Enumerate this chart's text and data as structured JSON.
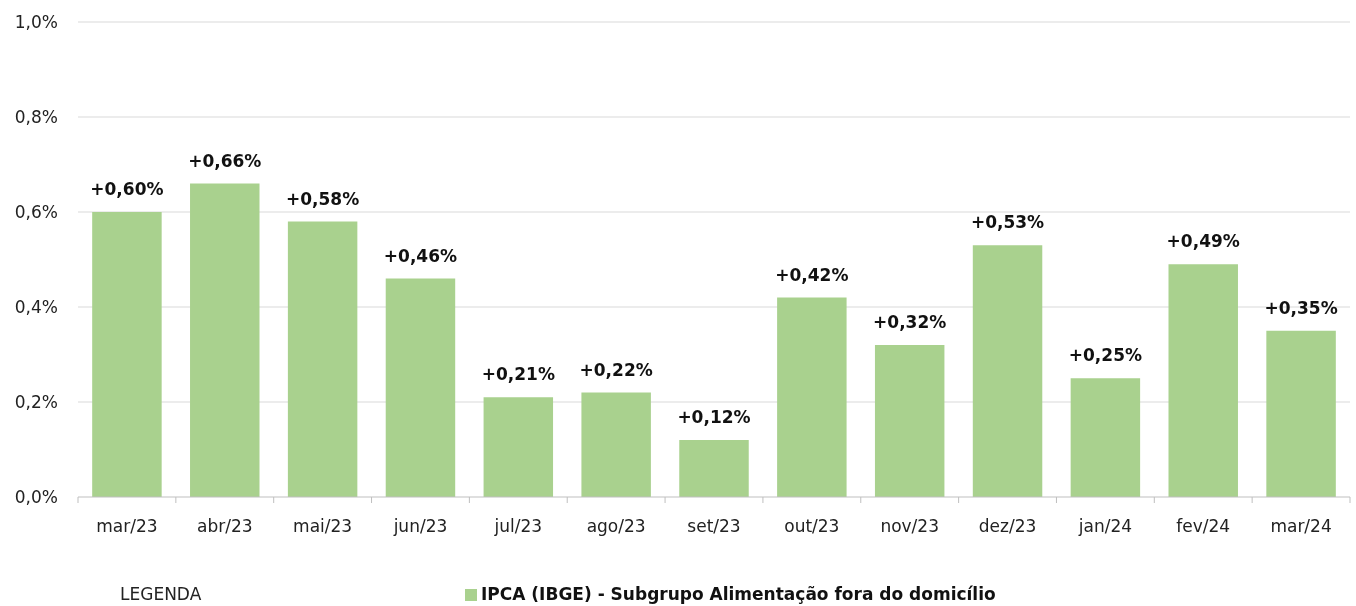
{
  "chart_data": {
    "type": "bar",
    "categories": [
      "mar/23",
      "abr/23",
      "mai/23",
      "jun/23",
      "jul/23",
      "ago/23",
      "set/23",
      "out/23",
      "nov/23",
      "dez/23",
      "jan/24",
      "fev/24",
      "mar/24"
    ],
    "series": [
      {
        "name": "IPCA (IBGE) - Subgrupo Alimentação fora do domicílio",
        "color": "#a9d18e",
        "values": [
          0.6,
          0.66,
          0.58,
          0.46,
          0.21,
          0.22,
          0.12,
          0.42,
          0.32,
          0.53,
          0.25,
          0.49,
          0.35
        ],
        "value_labels": [
          "+0,60%",
          "+0,66%",
          "+0,58%",
          "+0,46%",
          "+0,21%",
          "+0,22%",
          "+0,12%",
          "+0,42%",
          "+0,32%",
          "+0,53%",
          "+0,25%",
          "+0,49%",
          "+0,35%"
        ]
      }
    ],
    "ylim": [
      0,
      1.0
    ],
    "yticks": [
      {
        "value": 0,
        "label": "0,0%"
      },
      {
        "value": 0.2,
        "label": "0,2%"
      },
      {
        "value": 0.4,
        "label": "0,4%"
      },
      {
        "value": 0.6,
        "label": "0,6%"
      },
      {
        "value": 0.8,
        "label": "0,8%"
      },
      {
        "value": 1.0,
        "label": "1,0%"
      }
    ],
    "grid": "y",
    "legend": "bottom",
    "annotations": [
      "LEGENDA"
    ]
  }
}
